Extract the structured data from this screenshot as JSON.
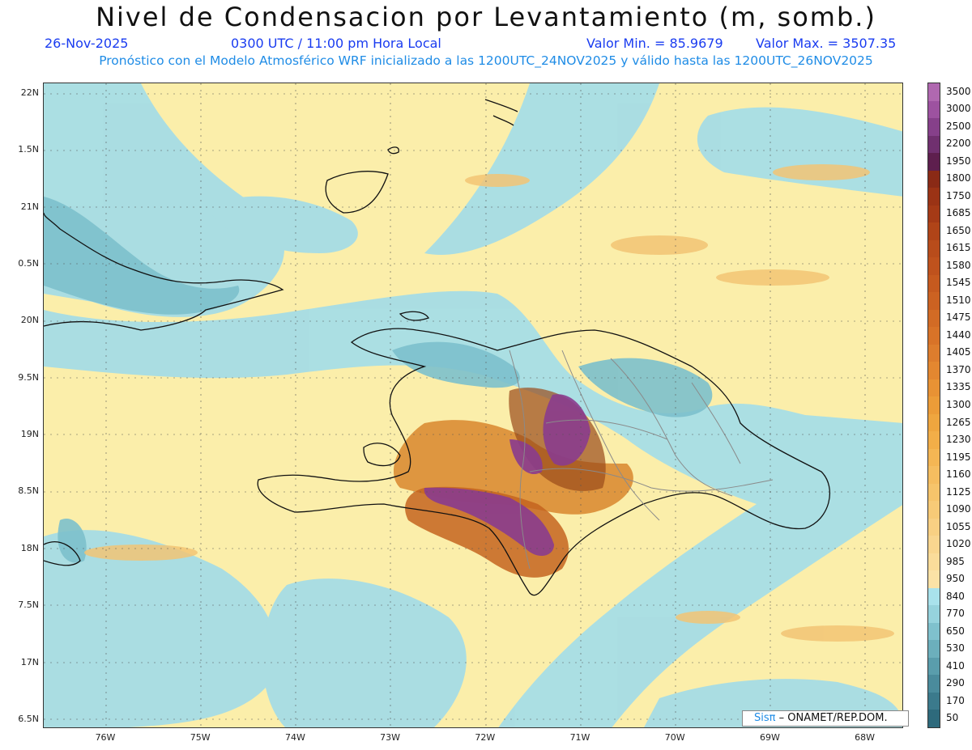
{
  "header": {
    "title": "Nivel de Condensacion por Levantamiento (m, somb.)",
    "date": "26-Nov-2025",
    "time": "0300 UTC / 11:00 pm Hora Local",
    "valmin": "Valor Min. = 85.9679",
    "valmax": "Valor Max. = 3507.35",
    "subtitle": "Pronóstico con el Modelo Atmosférico WRF inicializado a las 1200UTC_24NOV2025 y válido hasta las  1200UTC_26NOV2025"
  },
  "axes": {
    "lat_ticks": [
      "22N",
      "1.5N",
      "21N",
      "0.5N",
      "20N",
      "9.5N",
      "19N",
      "8.5N",
      "18N",
      "7.5N",
      "17N",
      "6.5N"
    ],
    "lon_ticks": [
      "76W",
      "75W",
      "74W",
      "73W",
      "72W",
      "71W",
      "70W",
      "69W",
      "68W"
    ]
  },
  "colorbar": {
    "labels": [
      "3500",
      "3000",
      "2500",
      "2200",
      "1950",
      "1800",
      "1750",
      "1685",
      "1650",
      "1615",
      "1580",
      "1545",
      "1510",
      "1475",
      "1440",
      "1405",
      "1370",
      "1335",
      "1300",
      "1265",
      "1230",
      "1195",
      "1160",
      "1125",
      "1090",
      "1055",
      "1020",
      "985",
      "950",
      "840",
      "770",
      "650",
      "530",
      "410",
      "290",
      "170",
      "50"
    ],
    "colors": [
      "#b068b0",
      "#9d52a0",
      "#86408a",
      "#70306f",
      "#5e1f4e",
      "#8a2a16",
      "#9b3315",
      "#a53a16",
      "#b04418",
      "#b84c1b",
      "#bf521d",
      "#c65a1f",
      "#cc6222",
      "#d26b25",
      "#d87328",
      "#dd7d2d",
      "#e38730",
      "#e89234",
      "#ec9c38",
      "#efa63f",
      "#f2ae48",
      "#f4b654",
      "#f5bd60",
      "#f6c46b",
      "#f7ca77",
      "#f8d083",
      "#f9d68f",
      "#fadc9a",
      "#fbe2a6",
      "#a9e2ec",
      "#96d3dd",
      "#7fc1cd",
      "#6cafbc",
      "#5a9dac",
      "#4a8b9c",
      "#3b7a8c",
      "#2e6a7c"
    ]
  },
  "map": {
    "land_color": "#fbeeaa",
    "moist_color": "#a6dde6",
    "moist_dark_color": "#7cc0cc",
    "warm_color": "#f2c474",
    "orange_color": "#d8862e",
    "brown_color": "#9a4a1a",
    "purple_color": "#8a3c8e",
    "coast_color": "#111111",
    "border_color": "#8a8a8a"
  },
  "credit": {
    "sis": "Sisπ",
    "text": "– ONAMET/REP.DOM."
  }
}
